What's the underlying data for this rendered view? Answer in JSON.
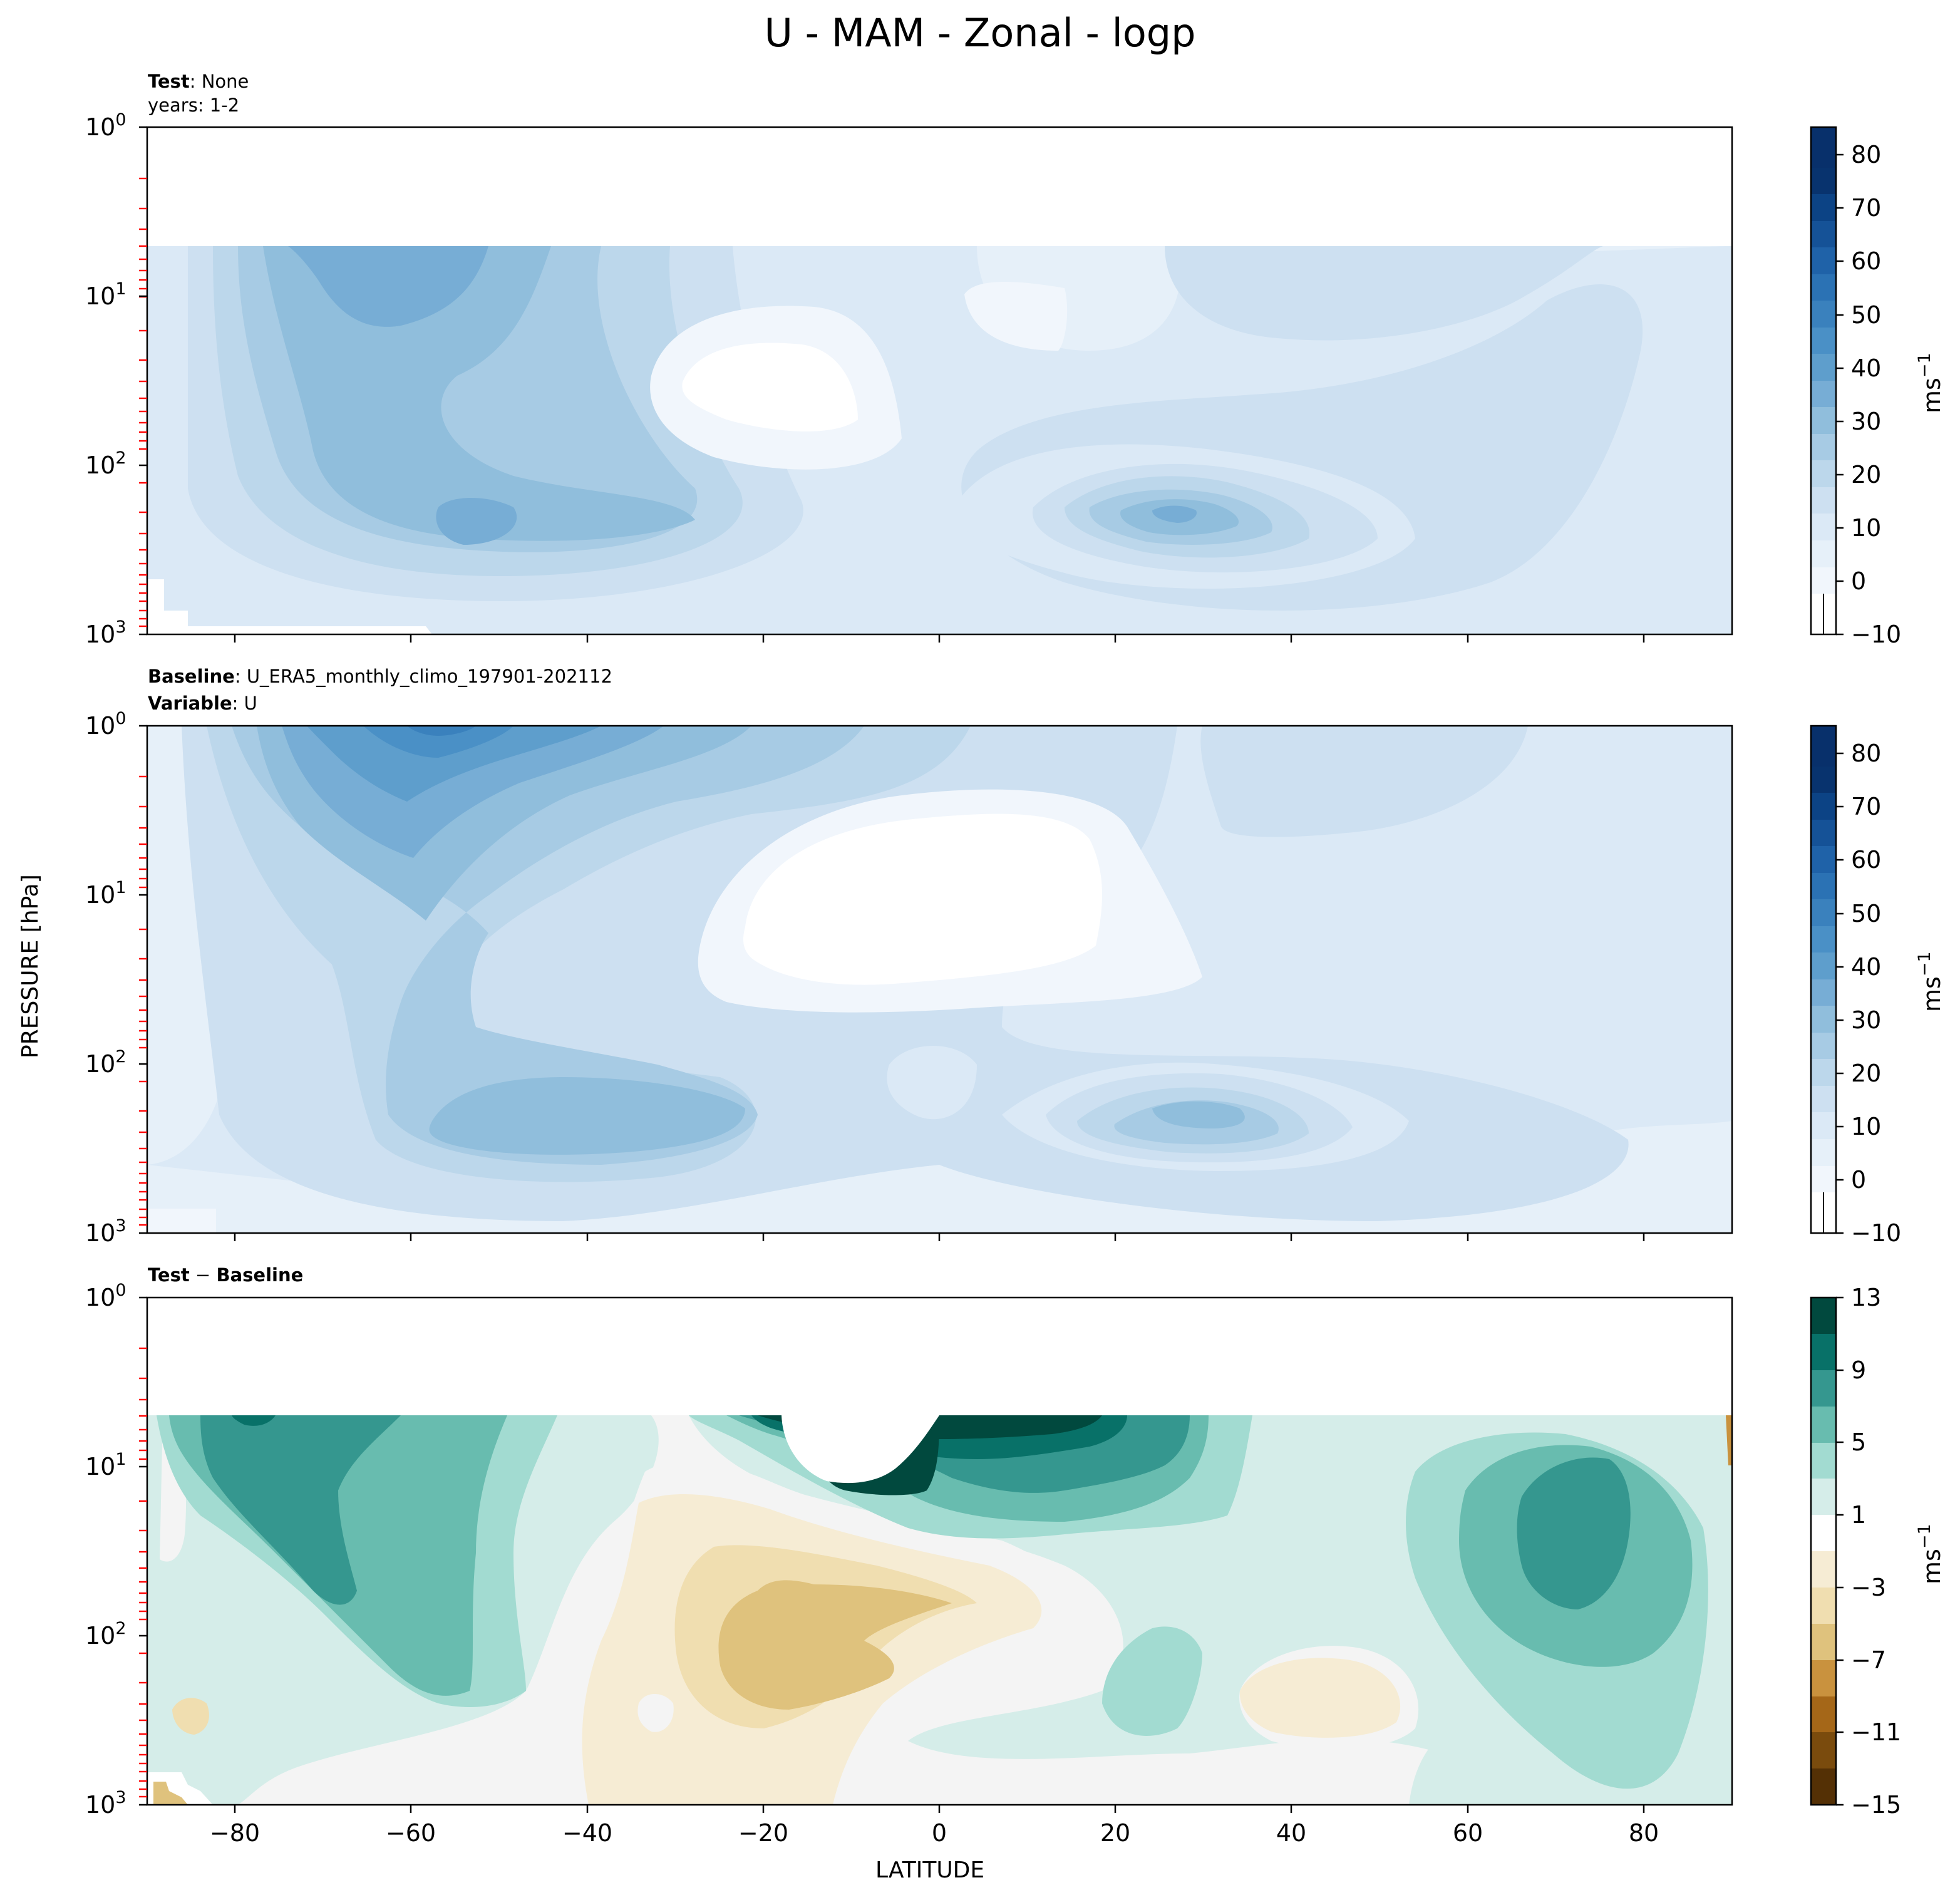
{
  "figure": {
    "title": "U - MAM - Zonal - logp",
    "xlabel": "LATITUDE",
    "ylabel": "PRESSURE [hPa]",
    "units": "ms"
  },
  "chart_data": [
    {
      "type": "contourf",
      "panel": "test",
      "header_bold": "Test",
      "header_text": "None",
      "header_line2": "years: 1-2",
      "x_ticks": [
        -80,
        -60,
        -40,
        -20,
        0,
        20,
        40,
        60,
        80
      ],
      "xlim": [
        -90,
        90
      ],
      "ylim": [
        1000,
        1
      ],
      "yscale": "log",
      "y_tick_labels": [
        "10",
        "10",
        "10",
        "10"
      ],
      "y_tick_exponents": [
        "0",
        "1",
        "2",
        "3"
      ],
      "colorbar": {
        "levels": [
          -10,
          -5,
          0,
          5,
          10,
          15,
          20,
          25,
          30,
          35,
          40,
          45,
          50,
          55,
          60,
          65,
          70,
          75,
          80,
          85
        ],
        "tick_labels": [
          "80",
          "70",
          "60",
          "50",
          "40",
          "30",
          "20",
          "10",
          "0",
          "−10"
        ],
        "units": "ms",
        "cmap": "Blues"
      },
      "features": [
        {
          "kind": "jet",
          "lat": -62,
          "pressure": 2,
          "value": 45
        },
        {
          "kind": "jet",
          "lat": -52,
          "pressure": 200,
          "value": 40
        },
        {
          "kind": "jet",
          "lat": 28,
          "pressure": 200,
          "value": 45
        },
        {
          "kind": "minimum",
          "lat": -18,
          "pressure": 30,
          "value": -5
        }
      ]
    },
    {
      "type": "contourf",
      "panel": "baseline",
      "header_bold": "Baseline",
      "header_text": "U_ERA5_monthly_climo_197901-202112",
      "header_bold2": "Variable",
      "header_text2": "U",
      "x_ticks": [
        -80,
        -60,
        -40,
        -20,
        0,
        20,
        40,
        60,
        80
      ],
      "xlim": [
        -90,
        90
      ],
      "ylim": [
        1000,
        1
      ],
      "yscale": "log",
      "y_tick_labels": [
        "10",
        "10",
        "10",
        "10"
      ],
      "y_tick_exponents": [
        "0",
        "1",
        "2",
        "3"
      ],
      "colorbar": {
        "levels": [
          -10,
          -5,
          0,
          5,
          10,
          15,
          20,
          25,
          30,
          35,
          40,
          45,
          50,
          55,
          60,
          65,
          70,
          75,
          80,
          85
        ],
        "tick_labels": [
          "80",
          "70",
          "60",
          "50",
          "40",
          "30",
          "20",
          "10",
          "0",
          "−10"
        ],
        "units": "ms",
        "cmap": "Blues"
      },
      "features": [
        {
          "kind": "jet",
          "lat": -57,
          "pressure": 1,
          "value": 50
        },
        {
          "kind": "jet",
          "lat": -50,
          "pressure": 200,
          "value": 35
        },
        {
          "kind": "jet",
          "lat": 30,
          "pressure": 200,
          "value": 40
        },
        {
          "kind": "minimum",
          "lat": -12,
          "pressure": 15,
          "value": -5
        }
      ]
    },
    {
      "type": "contourf",
      "panel": "difference",
      "header_bold": "Test",
      "header_minus": "−",
      "header_bold2": "Baseline",
      "x_ticks": [
        -80,
        -60,
        -40,
        -20,
        0,
        20,
        40,
        60,
        80
      ],
      "x_tick_labels": [
        "−80",
        "−60",
        "−40",
        "−20",
        "0",
        "20",
        "40",
        "60",
        "80"
      ],
      "xlim": [
        -90,
        90
      ],
      "ylim": [
        1000,
        1
      ],
      "yscale": "log",
      "y_tick_labels": [
        "10",
        "10",
        "10",
        "10"
      ],
      "y_tick_exponents": [
        "0",
        "1",
        "2",
        "3"
      ],
      "colorbar": {
        "levels": [
          -15,
          -13,
          -11,
          -9,
          -7,
          -5,
          -3,
          -1,
          1,
          3,
          5,
          7,
          9,
          11,
          13
        ],
        "tick_labels": [
          "13",
          "9",
          "5",
          "1",
          "−3",
          "−7",
          "−11",
          "−15"
        ],
        "units": "ms",
        "cmap": "BrBG"
      },
      "features": [
        {
          "kind": "positive",
          "lat": -70,
          "pressure": 10,
          "value": 9
        },
        {
          "kind": "positive",
          "lat": 5,
          "pressure": 7,
          "value": 13
        },
        {
          "kind": "positive",
          "lat": 70,
          "pressure": 20,
          "value": 9
        },
        {
          "kind": "negative",
          "lat": -20,
          "pressure": 100,
          "value": -5
        },
        {
          "kind": "negative",
          "lat": 45,
          "pressure": 400,
          "value": -1
        }
      ]
    }
  ],
  "colors": {
    "blues": [
      "#ffffff",
      "#f1f6fc",
      "#e6f0f9",
      "#dbe9f6",
      "#cde0f1",
      "#bcd7eb",
      "#a7cbe4",
      "#90bedc",
      "#77add5",
      "#5e9ecc",
      "#4a90c6",
      "#3a81bd",
      "#2b72b4",
      "#1f62a8",
      "#155297",
      "#0c4385",
      "#08336e"
    ],
    "brbg": [
      "#543005",
      "#7a4b0d",
      "#a56718",
      "#c9923e",
      "#dfc27d",
      "#f0deb0",
      "#f6ecd4",
      "#f4f4f4",
      "#d5ede9",
      "#a2dbd1",
      "#68bcaf",
      "#35978f",
      "#087168",
      "#01493e"
    ],
    "tick_red": "#ff0000"
  }
}
